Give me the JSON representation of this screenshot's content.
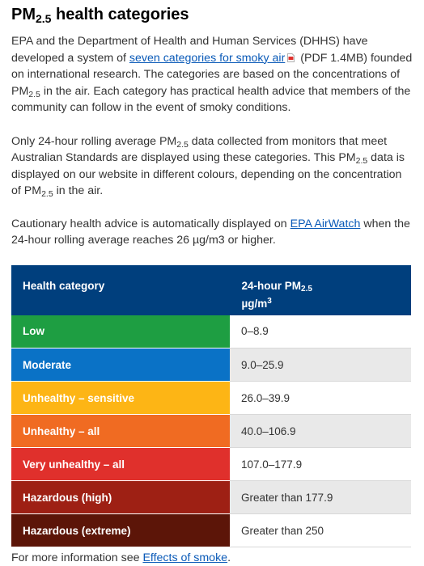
{
  "heading": {
    "prefix": "PM",
    "sub": "2.5",
    "suffix": " health categories"
  },
  "intro": {
    "part1": "EPA and the Department of Health and Human Services (DHHS) have developed a system of ",
    "link": "seven categories for smoky air",
    "part2": " (PDF 1.4MB) founded on international research. The categories are based on the concentrations of PM",
    "sub": "2.5",
    "part3": " in the air. Each category has practical health advice that members of the community can follow in the event of smoky conditions."
  },
  "para2": {
    "part1": "Only 24-hour rolling average PM",
    "sub1": "2.5",
    "part2": " data collected from monitors that meet Australian Standards are displayed using these categories. This PM",
    "sub2": "2.5",
    "part3": " data is displayed on our website in different colours, depending on the concentration of PM",
    "sub3": "2.5",
    "part4": " in the air."
  },
  "para3": {
    "part1": "Cautionary health advice is automatically displayed on ",
    "link": "EPA AirWatch",
    "part2": " when the 24-hour rolling average reaches 26 µg/m3 or higher."
  },
  "table": {
    "header_category": "Health category",
    "header_value_prefix": "24-hour PM",
    "header_value_sub": "2.5",
    "header_value_unit": "µg/m",
    "header_value_sup": "3",
    "rows": [
      {
        "category": "Low",
        "value": "0–8.9",
        "color": "#1e9e42"
      },
      {
        "category": "Moderate",
        "value": "9.0–25.9",
        "color": "#0a72c6"
      },
      {
        "category": "Unhealthy – sensitive",
        "value": "26.0–39.9",
        "color": "#fdb515"
      },
      {
        "category": "Unhealthy – all",
        "value": "40.0–106.9",
        "color": "#f06b22"
      },
      {
        "category": "Very unhealthy – all",
        "value": "107.0–177.9",
        "color": "#e0302c"
      },
      {
        "category": "Hazardous (high)",
        "value": "Greater than 177.9",
        "color": "#9e2014"
      },
      {
        "category": "Hazardous (extreme)",
        "value": "Greater than 250",
        "color": "#5c1508"
      }
    ]
  },
  "footer": {
    "prefix": "For more information see ",
    "link": "Effects of smoke",
    "suffix": "."
  },
  "colors": {
    "link": "#0a5ab8",
    "table_header": "#003f7d"
  },
  "icons": [
    "pdf-icon"
  ]
}
